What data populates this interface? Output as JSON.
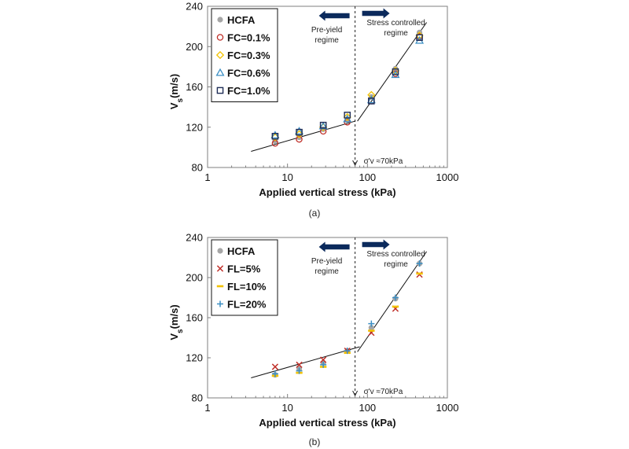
{
  "colors": {
    "HCFA": "#a6a6a6",
    "red": "#c0302a",
    "yellow": "#f2c200",
    "blue": "#3c8fc4",
    "navy": "#1f2d57",
    "arrow": "#0b2a5c",
    "axis": "#7f7f7f"
  },
  "chart_data": [
    {
      "type": "scatter",
      "caption": "(a)",
      "xlabel": "Applied vertical stress (kPa)",
      "ylabel_main": "V",
      "ylabel_sub": "s",
      "ylabel_unit": "(m/s)",
      "xscale": "log",
      "xlim": [
        1,
        1000
      ],
      "ylim": [
        80,
        240
      ],
      "xticks": [
        "1",
        "10",
        "100",
        "1000"
      ],
      "yticks": [
        "80",
        "120",
        "160",
        "200",
        "240"
      ],
      "grid": false,
      "legend_position": "top-left",
      "annotations": {
        "left_regime": [
          "Pre-yield",
          "regime"
        ],
        "right_regime": [
          "Stress controlled",
          "regime"
        ],
        "yield_label": "σ'v ≈70kPa",
        "yield_stress": 70
      },
      "fit_lines": [
        {
          "x": [
            3.5,
            70
          ],
          "y": [
            96,
            126
          ]
        },
        {
          "x": [
            75,
            550
          ],
          "y": [
            126,
            224
          ]
        }
      ],
      "series": [
        {
          "name": "HCFA",
          "marker": "circle-filled",
          "color": "HCFA",
          "x": [
            7,
            14,
            28,
            56,
            112,
            224,
            448
          ],
          "y": [
            106,
            110,
            118,
            127,
            150,
            178,
            214
          ]
        },
        {
          "name": "FC=0.1%",
          "marker": "circle-open",
          "color": "red",
          "x": [
            7,
            14,
            28,
            56,
            112,
            224,
            448
          ],
          "y": [
            104,
            108,
            116,
            125,
            146,
            173,
            210
          ]
        },
        {
          "name": "FC=0.3%",
          "marker": "diamond-open",
          "color": "yellow",
          "x": [
            7,
            14,
            28,
            56,
            112,
            224,
            448
          ],
          "y": [
            110,
            113,
            120,
            130,
            152,
            176,
            211
          ]
        },
        {
          "name": "FC=0.6%",
          "marker": "triangle-open",
          "color": "blue",
          "x": [
            7,
            14,
            28,
            56,
            112,
            224,
            448
          ],
          "y": [
            112,
            116,
            121,
            128,
            147,
            172,
            206
          ]
        },
        {
          "name": "FC=1.0%",
          "marker": "square-open",
          "color": "navy",
          "x": [
            7,
            14,
            28,
            56,
            112,
            224,
            448
          ],
          "y": [
            111,
            115,
            122,
            132,
            146,
            175,
            209
          ]
        }
      ]
    },
    {
      "type": "scatter",
      "caption": "(b)",
      "xlabel": "Applied vertical stress (kPa)",
      "ylabel_main": "V",
      "ylabel_sub": "s",
      "ylabel_unit": "(m/s)",
      "xscale": "log",
      "xlim": [
        1,
        1000
      ],
      "ylim": [
        80,
        240
      ],
      "xticks": [
        "1",
        "10",
        "100",
        "1000"
      ],
      "yticks": [
        "80",
        "120",
        "160",
        "200",
        "240"
      ],
      "grid": false,
      "legend_position": "top-left",
      "annotations": {
        "left_regime": [
          "Pre-yield",
          "regime"
        ],
        "right_regime": [
          "Stress controlled",
          "regime"
        ],
        "yield_label": "σ'v ≈70kPa",
        "yield_stress": 70
      },
      "fit_lines": [
        {
          "x": [
            3.5,
            80
          ],
          "y": [
            100,
            131
          ]
        },
        {
          "x": [
            75,
            550
          ],
          "y": [
            126,
            226
          ]
        }
      ],
      "series": [
        {
          "name": "HCFA",
          "marker": "circle-filled",
          "color": "HCFA",
          "x": [
            7,
            14,
            28,
            56,
            112,
            224,
            448
          ],
          "y": [
            103,
            109,
            115,
            127,
            150,
            179,
            214
          ]
        },
        {
          "name": "FL=5%",
          "marker": "x",
          "color": "red",
          "x": [
            7,
            14,
            28,
            56,
            112,
            224,
            448
          ],
          "y": [
            111,
            113,
            118,
            127,
            145,
            169,
            203
          ]
        },
        {
          "name": "FL=10%",
          "marker": "dash",
          "color": "yellow",
          "x": [
            7,
            14,
            28,
            56,
            112,
            224,
            448
          ],
          "y": [
            102,
            105,
            111,
            125,
            147,
            171,
            204
          ]
        },
        {
          "name": "FL=20%",
          "marker": "plus",
          "color": "blue",
          "x": [
            7,
            14,
            28,
            56,
            112,
            224,
            448
          ],
          "y": [
            104,
            107,
            113,
            127,
            154,
            180,
            214
          ]
        }
      ]
    }
  ]
}
